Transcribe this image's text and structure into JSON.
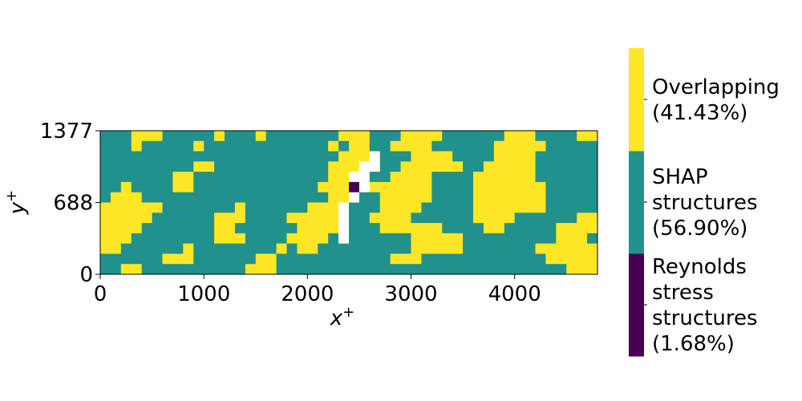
{
  "chart_data": {
    "type": "heatmap",
    "title": "",
    "xlabel": "x",
    "xlabel_sup": "+",
    "ylabel": "y",
    "ylabel_sup": "+",
    "xlim": [
      0,
      4800
    ],
    "ylim": [
      0,
      1377
    ],
    "x_ticks": [
      {
        "value": 0,
        "label": "0"
      },
      {
        "value": 1000,
        "label": "1000"
      },
      {
        "value": 2000,
        "label": "2000"
      },
      {
        "value": 3000,
        "label": "3000"
      },
      {
        "value": 4000,
        "label": "4000"
      }
    ],
    "y_ticks": [
      {
        "value": 0,
        "label": "0"
      },
      {
        "value": 688,
        "label": "688"
      },
      {
        "value": 1377,
        "label": "1377"
      }
    ],
    "grid": false,
    "colormap": "viridis",
    "background_color": "#ffffff",
    "categories": [
      {
        "code": 1,
        "lines": [
          "Reynolds",
          "stress",
          "structures",
          "(1.68%)"
        ],
        "fraction": 0.0168,
        "color": "#440154"
      },
      {
        "code": 2,
        "lines": [
          "SHAP",
          "structures",
          "(56.90%)"
        ],
        "fraction": 0.569,
        "color": "#21918c"
      },
      {
        "code": 3,
        "lines": [
          "Overlapping",
          "(41.43%)"
        ],
        "fraction": 0.4143,
        "color": "#fde725"
      }
    ],
    "legend": "colorbar-right",
    "field_sample_grid": {
      "nx": 48,
      "ny": 14,
      "legend_codes": "0 = white (none), 1 = Reynolds stress structures, 2 = SHAP structures, 3 = Overlapping",
      "rows_top_to_bottom": [
        "222333222223222322222223332223333222222333222233",
        "222322222322222222222232332233332222223333322222",
        "222222222222222222222223330222333322223333222222",
        "222222222332222222222233300223333332233333222222",
        "222222233222222222222233002233332222333333222222",
        "223222233222222222222333103333332222333333322222",
        "233322222222222222222233022333332222333333322222",
        "333333222222232222223330222333322222333333322222",
        "333332222223332222333330223333222222333322222233",
        "333322222223322222233330222333333222233222223333",
        "333222222223332222333320222222333332222222223332",
        "332222223222222223233222222222333332222222333333",
        "222222333222222332222222222233322222222222233333",
        "223322222222223332222222222222222222222222222333"
      ]
    }
  }
}
